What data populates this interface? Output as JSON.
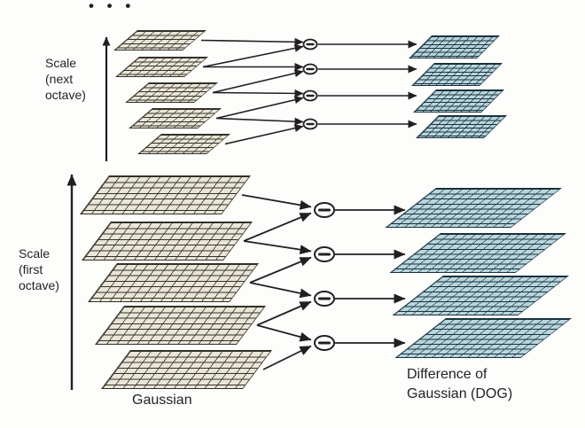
{
  "labels": {
    "continuation_dots": "• • •",
    "scale_next_octave": "Scale\n(next\noctave)",
    "scale_first_octave": "Scale\n(first\noctave)",
    "gaussian_column": "Gaussian",
    "dog_column": "Difference of\nGaussian (DOG)"
  },
  "icons": {
    "subtract_symbol": "−"
  },
  "colors": {
    "background": "#fdfdfc",
    "ink": "#231f20",
    "gaussian_grid_fill": "#eae6d7",
    "gaussian_grid_line": "#333028",
    "dog_grid_fill": "#b9d5dd",
    "dog_grid_line": "#19313d"
  },
  "structure": {
    "octaves": [
      {
        "id": "next",
        "label": "next octave",
        "gaussian_levels": 5,
        "dog_levels": 4,
        "subtractions": 4
      },
      {
        "id": "first",
        "label": "first octave",
        "gaussian_levels": 5,
        "dog_levels": 4,
        "subtractions": 4
      }
    ]
  }
}
